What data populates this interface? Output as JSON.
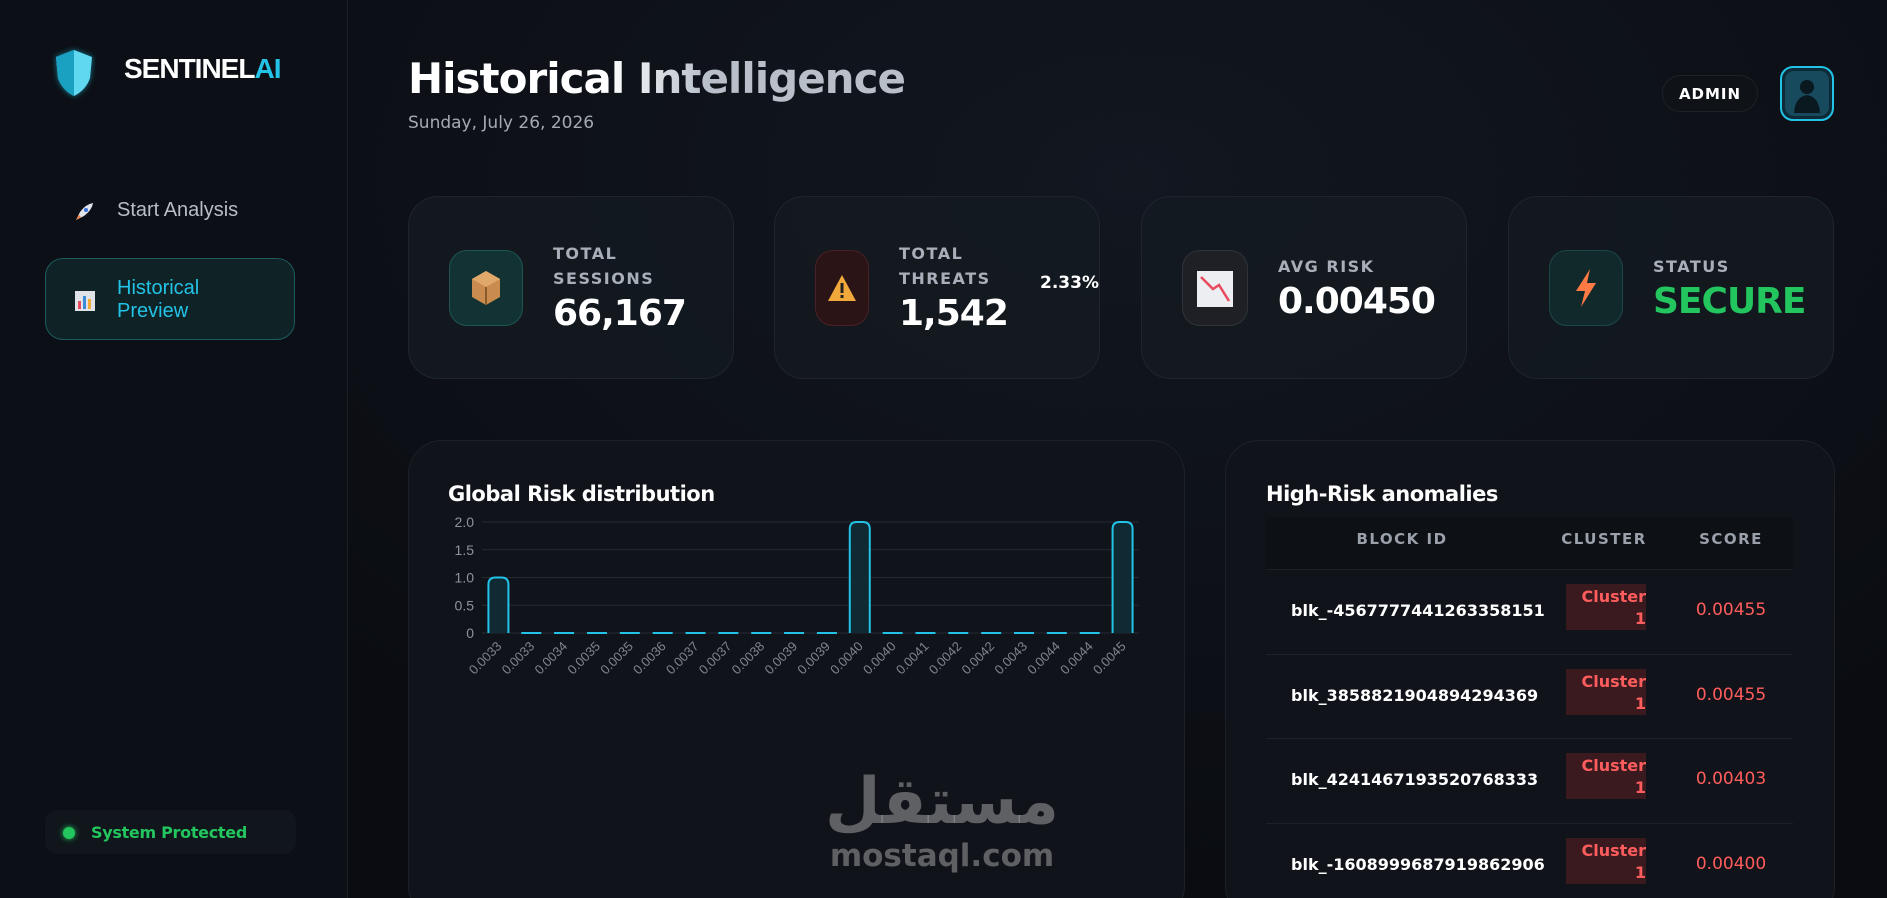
{
  "sidebar": {
    "brand": {
      "name": "SENTINEL",
      "accent": "AI"
    },
    "nav": [
      {
        "label": "Start Analysis"
      },
      {
        "label": "Historical Preview"
      }
    ],
    "status": "System Protected"
  },
  "header": {
    "title": "Historical Intelligence",
    "date": "Sunday, July 26, 2026",
    "user": "ADMIN"
  },
  "cards": [
    {
      "label": "TOTAL SESSIONS",
      "value": "66,167"
    },
    {
      "label": "TOTAL THREATS",
      "value": "1,542",
      "note": "2.33%"
    },
    {
      "label": "AVG RISK",
      "value": "0.00450"
    },
    {
      "label": "STATUS",
      "value": "SECURE"
    }
  ],
  "chart_data": {
    "type": "bar",
    "title": "Global Risk distribution",
    "categories": [
      "0.0033",
      "0.0033",
      "0.0034",
      "0.0035",
      "0.0035",
      "0.0036",
      "0.0037",
      "0.0037",
      "0.0038",
      "0.0039",
      "0.0039",
      "0.0040",
      "0.0040",
      "0.0041",
      "0.0042",
      "0.0042",
      "0.0043",
      "0.0044",
      "0.0044",
      "0.0045"
    ],
    "values": [
      1,
      0,
      0,
      0,
      0,
      0,
      0,
      0,
      0,
      0,
      0,
      2,
      0,
      0,
      0,
      0,
      0,
      0,
      0,
      2
    ],
    "color": "#22c3e6",
    "ylim": [
      0,
      2
    ],
    "yticks": [
      0,
      0.5,
      {
        "value": 1,
        "label": "1.0"
      },
      1.5,
      {
        "value": 2,
        "label": "2.0"
      }
    ],
    "grid": true
  },
  "table": {
    "title": "High-Risk anomalies",
    "columns": [
      "BLOCK ID",
      "CLUSTER",
      "SCORE"
    ],
    "rows": [
      [
        "blk_-4567777441263358151",
        "Cluster 1",
        "0.00455"
      ],
      [
        "blk_3858821904894294369",
        "Cluster 1",
        "0.00455"
      ],
      [
        "blk_4241467193520768333",
        "Cluster 1",
        "0.00403"
      ],
      [
        "blk_-1608999687919862906",
        "Cluster 1",
        "0.00400"
      ]
    ]
  },
  "watermark": {
    "arabic": "مستقل",
    "latin": "mostaql.com"
  }
}
